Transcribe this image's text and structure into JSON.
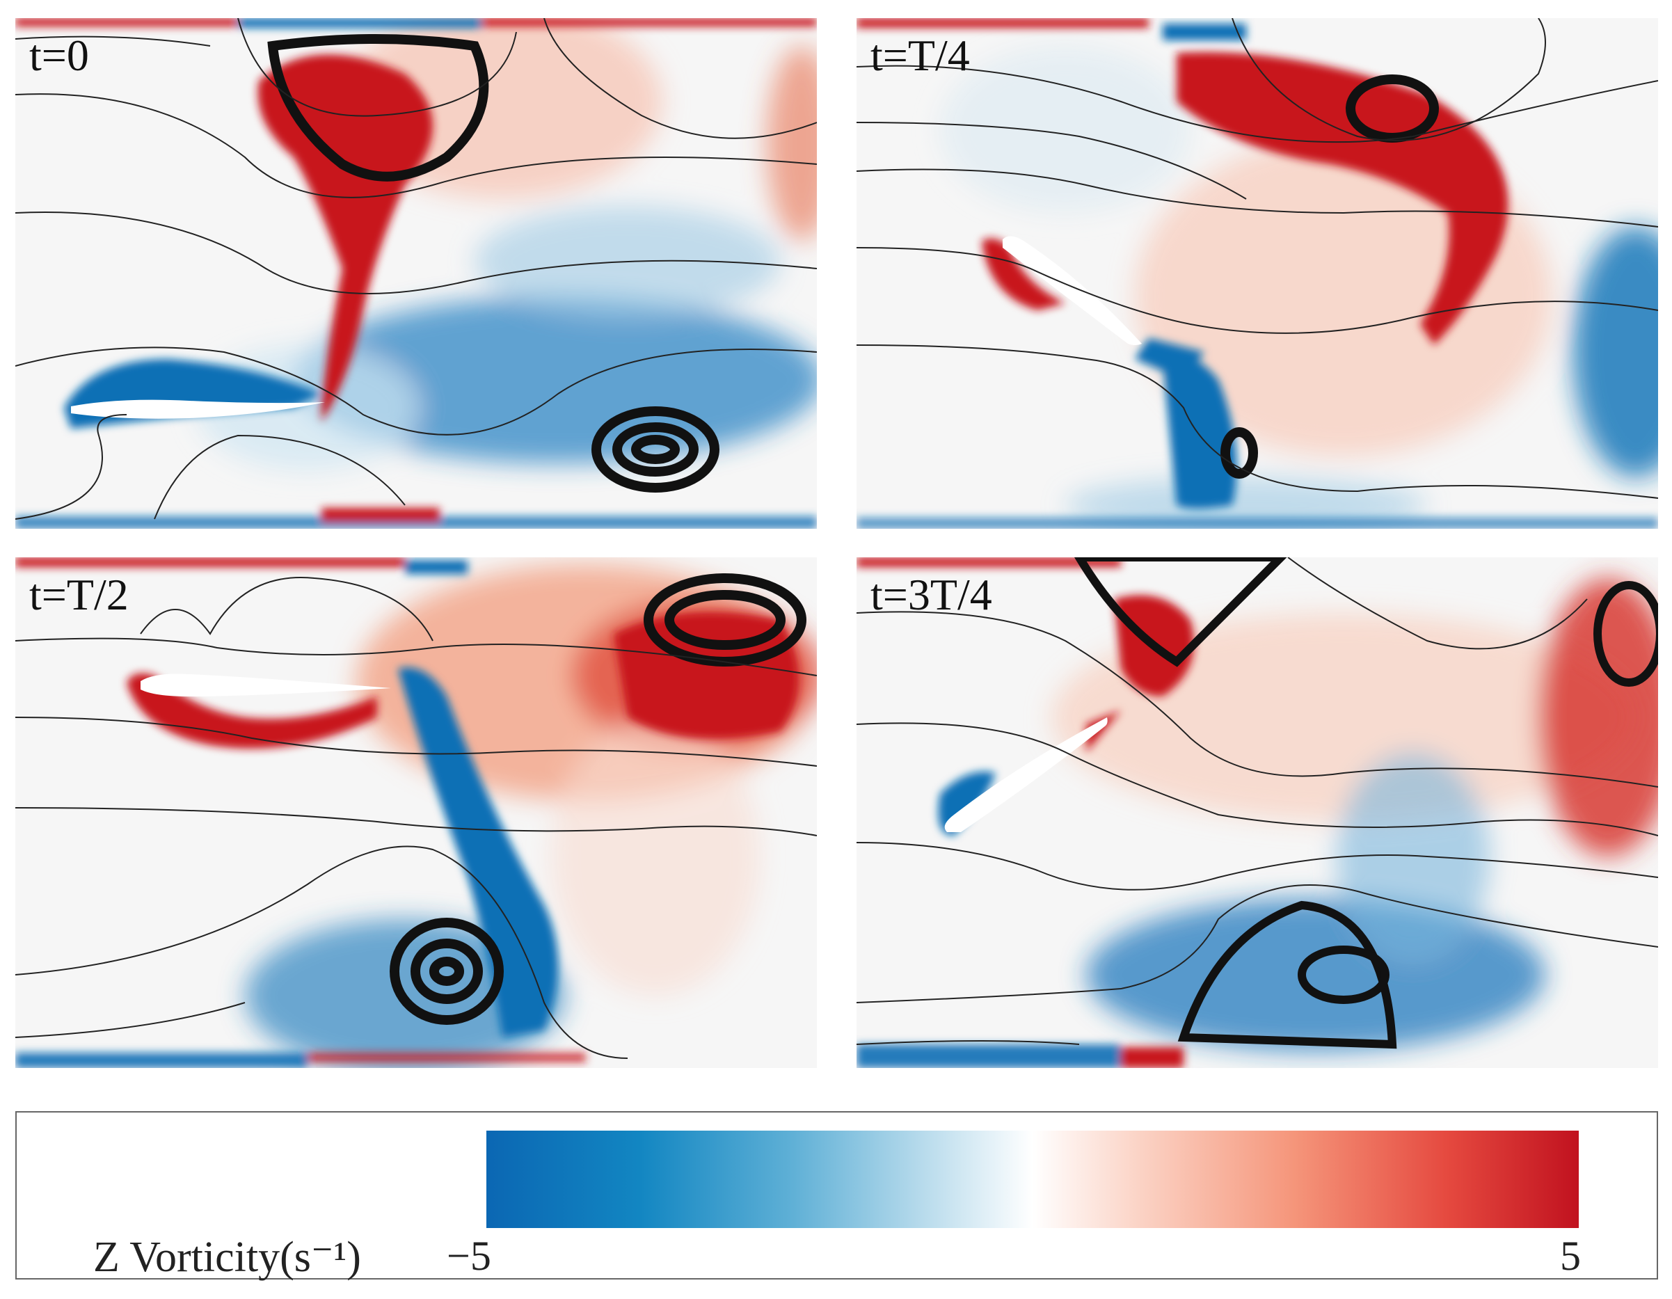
{
  "panels": [
    {
      "label": "t=0"
    },
    {
      "label": "t=T/4"
    },
    {
      "label": "t=T/2"
    },
    {
      "label": "t=3T/4"
    }
  ],
  "colorbar": {
    "label": "Z Vorticity(s⁻¹)",
    "min": "−5",
    "max": "5"
  },
  "colors": {
    "positive": "#c8151f",
    "negative": "#0f6fb5",
    "background": "#f6f6f6",
    "streamline": "#222222"
  }
}
